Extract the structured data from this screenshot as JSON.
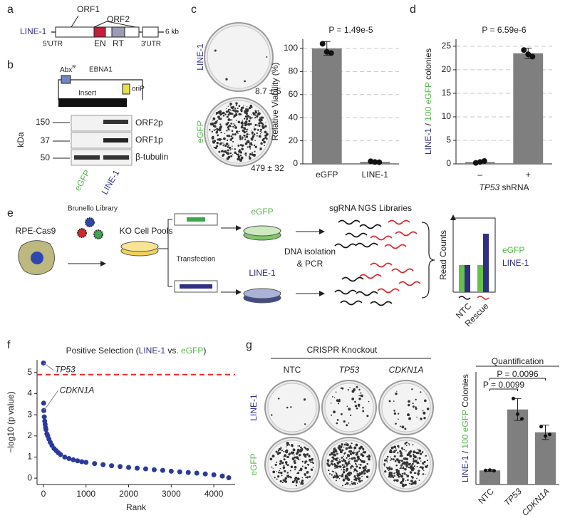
{
  "panel_labels": [
    "a",
    "b",
    "c",
    "d",
    "e",
    "f",
    "g"
  ],
  "panel_a": {
    "element": "LINE-1",
    "orf1": "ORF1",
    "orf2": "ORF2",
    "utr5": "5'UTR",
    "en": "EN",
    "rt": "RT",
    "utr3": "3'UTR",
    "size": "6 kb"
  },
  "panel_b": {
    "abx": "Abx",
    "abx_sup": "R",
    "ebna1": "EBNA1",
    "insert": "Insert",
    "orip": "oriP",
    "unit": "kDa",
    "markers": [
      "150",
      "37",
      "50"
    ],
    "bands": [
      "ORF2p",
      "ORF1p",
      "β-tubulin"
    ],
    "lanes": [
      "eGFP",
      "LINE-1"
    ]
  },
  "panel_c": {
    "rows": [
      "LINE-1",
      "eGFP"
    ],
    "counts": [
      "8.7 ± 5",
      "479 ± 32"
    ]
  },
  "panel_e": {
    "cell": "RPE-Cas9",
    "library": "Brunello Library",
    "pools": "KO Cell Pools",
    "transfection": "Transfection",
    "plasmids": [
      "eGFP",
      "LINE-1"
    ],
    "dna": [
      "DNA isolation",
      "& PCR"
    ],
    "ngs": "sgRNA NGS Libraries",
    "readcounts": "Read Counts",
    "legend": [
      "eGFP",
      "LINE-1"
    ],
    "groups": [
      "NTC",
      "Rescue"
    ]
  },
  "panel_g": {
    "header": "CRISPR Knockout",
    "columns": [
      "NTC",
      "TP53",
      "CDKN1A"
    ],
    "rows": [
      "LINE-1",
      "eGFP"
    ]
  },
  "chart_data": [
    {
      "type": "bar",
      "title": "P = 1.49e-5",
      "ylabel": "Relative Viability (%)",
      "categories": [
        "eGFP",
        "LINE-1"
      ],
      "category_colors": [
        "#52b848",
        "#2f2f86"
      ],
      "values": [
        100,
        1.8
      ],
      "errors": [
        6,
        0.5
      ],
      "points": [
        [
          104,
          97,
          96
        ],
        [
          2.2,
          1.6,
          1.4
        ]
      ],
      "color": "#7f7f7f",
      "ylim": [
        0,
        108
      ],
      "yticks": [
        0,
        20,
        40,
        60,
        80,
        100
      ],
      "grid": true
    },
    {
      "type": "bar",
      "title": "P = 6.59e-6",
      "ylabel_parts": [
        {
          "text": "LINE-1",
          "color": "#2f2f86"
        },
        {
          "text": " / ",
          "color": "#222222"
        },
        {
          "text": "100 eGFP",
          "color": "#52b848"
        },
        {
          "text": " colonies",
          "color": "#222222"
        }
      ],
      "xlabel_parts": [
        {
          "text": "TP53",
          "style": "italic"
        },
        {
          "text": " shRNA",
          "style": "normal"
        }
      ],
      "categories": [
        "–",
        "+"
      ],
      "values": [
        0.4,
        23.5
      ],
      "errors": [
        0.2,
        1.1
      ],
      "points": [
        [
          0.2,
          0.4,
          0.6
        ],
        [
          24.2,
          23.3,
          22.8
        ]
      ],
      "color": "#7f7f7f",
      "ylim": [
        0,
        26.5
      ],
      "yticks": [
        0,
        5,
        10,
        15,
        20,
        25
      ],
      "grid": true
    },
    {
      "type": "scatter",
      "title_parts": [
        {
          "text": "Positive Selection (",
          "color": "#222222"
        },
        {
          "text": "LINE-1",
          "color": "#2f2f86"
        },
        {
          "text": " vs. ",
          "color": "#222222"
        },
        {
          "text": "eGFP",
          "color": "#52b848"
        },
        {
          "text": ")",
          "color": "#222222"
        }
      ],
      "xlabel": "Rank",
      "ylabel": "−log10 (p value)",
      "x": [
        1,
        5,
        10,
        20,
        30,
        40,
        50,
        60,
        80,
        100,
        130,
        160,
        200,
        250,
        300,
        350,
        400,
        500,
        600,
        700,
        800,
        900,
        1000,
        1200,
        1400,
        1600,
        1800,
        2000,
        2200,
        2400,
        2600,
        2800,
        3000,
        3200,
        3400,
        3600,
        3800,
        4000,
        4200,
        4350
      ],
      "values": [
        5.45,
        3.55,
        3.2,
        2.9,
        2.7,
        2.55,
        2.4,
        2.3,
        2.1,
        2.0,
        1.85,
        1.7,
        1.55,
        1.4,
        1.3,
        1.2,
        1.12,
        1.0,
        0.93,
        0.87,
        0.82,
        0.78,
        0.75,
        0.69,
        0.64,
        0.59,
        0.55,
        0.51,
        0.47,
        0.44,
        0.4,
        0.37,
        0.33,
        0.3,
        0.27,
        0.24,
        0.2,
        0.16,
        0.1,
        0.02
      ],
      "color": "#2b3a9a",
      "xlim": [
        -150,
        4500
      ],
      "ylim": [
        -0.3,
        5.6
      ],
      "xticks": [
        0,
        1000,
        2000,
        3000,
        4000
      ],
      "yticks": [
        0,
        1,
        2,
        3,
        4,
        5
      ],
      "threshold": 4.9,
      "threshold_color": "#e8262b",
      "annotations": [
        {
          "text": "TP53",
          "x": 1,
          "y": 5.45
        },
        {
          "text": "CDKN1A",
          "x": 10,
          "y": 3.2
        }
      ]
    },
    {
      "type": "bar",
      "title": "Quantification",
      "ylabel_parts": [
        {
          "text": "LINE-1",
          "color": "#2f2f86"
        },
        {
          "text": " / ",
          "color": "#222222"
        },
        {
          "text": "100 eGFP",
          "color": "#52b848"
        },
        {
          "text": " Colonies",
          "color": "#222222"
        }
      ],
      "categories": [
        "NTC",
        "TP53",
        "CDKN1A"
      ],
      "category_styles": [
        "normal",
        "italic",
        "italic"
      ],
      "values": [
        4.5,
        24,
        16.7
      ],
      "errors": [
        0.3,
        3.5,
        2.3
      ],
      "points": [
        [
          4.5,
          4.6,
          4.4
        ],
        [
          27.5,
          22.5,
          21
        ],
        [
          18.5,
          15.5,
          16
        ]
      ],
      "color": "#7f7f7f",
      "ylim": [
        0,
        36
      ],
      "comparisons": [
        "P = 0.0099",
        "P = 0.0096"
      ]
    }
  ]
}
